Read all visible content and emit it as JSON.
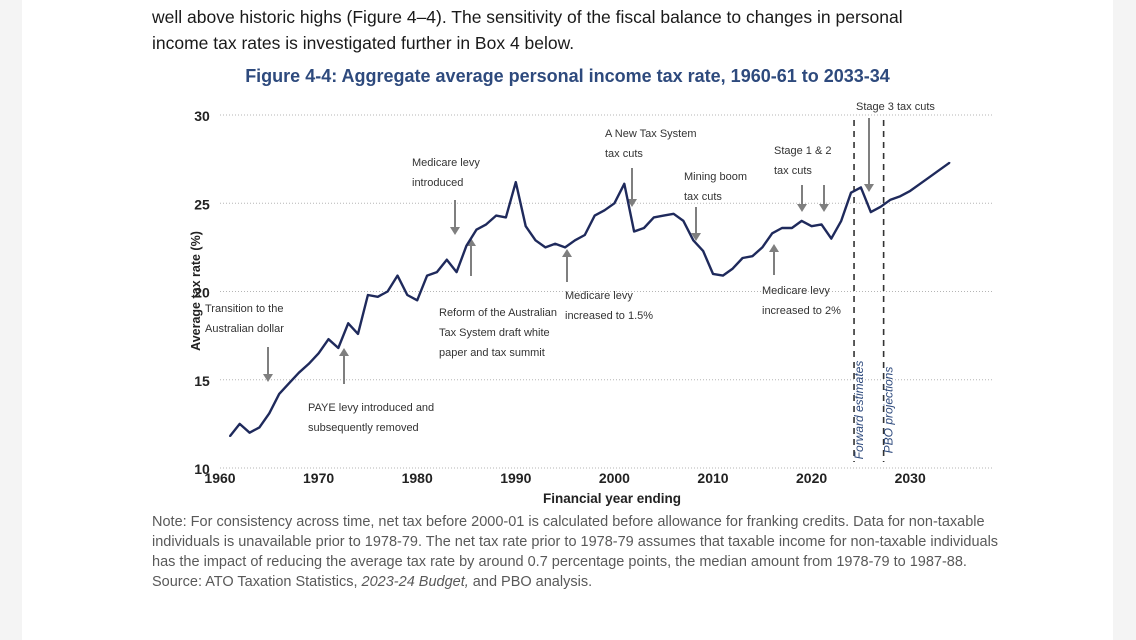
{
  "intro": {
    "line1": "well above historic highs (Figure 4–4). The sensitivity of the fiscal balance to changes in personal",
    "line2": "income tax rates is investigated further in Box 4 below."
  },
  "chart_data": {
    "type": "line",
    "title": "Figure 4-4: Aggregate average personal income tax rate, 1960-61 to 2033-34",
    "xlabel": "Financial year ending",
    "ylabel": "Average tax rate (%)",
    "xlim": [
      1960,
      2036
    ],
    "ylim": [
      10,
      30
    ],
    "x_ticks": [
      1960,
      1970,
      1980,
      1990,
      2000,
      2010,
      2020,
      2030
    ],
    "y_ticks": [
      10,
      15,
      20,
      25,
      30
    ],
    "grid": "horizontal dotted",
    "series": [
      {
        "name": "Average tax rate",
        "color": "#1f2a5c",
        "points": [
          [
            1961,
            11.8
          ],
          [
            1962,
            12.5
          ],
          [
            1963,
            12.0
          ],
          [
            1964,
            12.3
          ],
          [
            1965,
            13.1
          ],
          [
            1966,
            14.2
          ],
          [
            1967,
            14.8
          ],
          [
            1968,
            15.4
          ],
          [
            1969,
            15.9
          ],
          [
            1970,
            16.5
          ],
          [
            1971,
            17.3
          ],
          [
            1972,
            16.8
          ],
          [
            1973,
            18.2
          ],
          [
            1974,
            17.6
          ],
          [
            1975,
            19.8
          ],
          [
            1976,
            19.7
          ],
          [
            1977,
            20.0
          ],
          [
            1978,
            20.9
          ],
          [
            1979,
            19.8
          ],
          [
            1980,
            19.5
          ],
          [
            1981,
            20.9
          ],
          [
            1982,
            21.1
          ],
          [
            1983,
            21.8
          ],
          [
            1984,
            21.1
          ],
          [
            1985,
            22.6
          ],
          [
            1986,
            23.5
          ],
          [
            1987,
            23.8
          ],
          [
            1988,
            24.3
          ],
          [
            1989,
            24.2
          ],
          [
            1990,
            26.2
          ],
          [
            1991,
            23.7
          ],
          [
            1992,
            22.9
          ],
          [
            1993,
            22.5
          ],
          [
            1994,
            22.7
          ],
          [
            1995,
            22.5
          ],
          [
            1996,
            22.9
          ],
          [
            1997,
            23.2
          ],
          [
            1998,
            24.3
          ],
          [
            1999,
            24.6
          ],
          [
            2000,
            25.0
          ],
          [
            2001,
            26.1
          ],
          [
            2002,
            23.4
          ],
          [
            2003,
            23.6
          ],
          [
            2004,
            24.2
          ],
          [
            2005,
            24.3
          ],
          [
            2006,
            24.4
          ],
          [
            2007,
            24.0
          ],
          [
            2008,
            22.9
          ],
          [
            2009,
            22.3
          ],
          [
            2010,
            21.0
          ],
          [
            2011,
            20.9
          ],
          [
            2012,
            21.3
          ],
          [
            2013,
            21.9
          ],
          [
            2014,
            22.0
          ],
          [
            2015,
            22.5
          ],
          [
            2016,
            23.3
          ],
          [
            2017,
            23.6
          ],
          [
            2018,
            23.6
          ],
          [
            2019,
            24.0
          ],
          [
            2020,
            23.7
          ],
          [
            2021,
            23.8
          ],
          [
            2022,
            23.0
          ],
          [
            2023,
            24.0
          ],
          [
            2024,
            25.6
          ],
          [
            2025,
            25.9
          ],
          [
            2026,
            24.5
          ],
          [
            2027,
            24.8
          ],
          [
            2028,
            25.2
          ],
          [
            2029,
            25.4
          ],
          [
            2030,
            25.7
          ],
          [
            2031,
            26.1
          ],
          [
            2032,
            26.5
          ],
          [
            2033,
            26.9
          ],
          [
            2034,
            27.3
          ]
        ]
      }
    ],
    "annotations": [
      {
        "lines": [
          "Transition to the",
          "Australian dollar"
        ],
        "year": 1966
      },
      {
        "lines": [
          "PAYE levy introduced and",
          "subsequently removed"
        ],
        "year": 1973
      },
      {
        "lines": [
          "Medicare levy",
          "introduced"
        ],
        "year": 1984
      },
      {
        "lines": [
          "Reform of the Australian",
          "Tax System draft white",
          "paper and tax summit"
        ],
        "year": 1985
      },
      {
        "lines": [
          "Medicare levy",
          "increased to 1.5%"
        ],
        "year": 1995
      },
      {
        "lines": [
          "A New Tax System",
          "tax cuts"
        ],
        "year": 2002
      },
      {
        "lines": [
          "Mining boom",
          "tax cuts"
        ],
        "year": 2009
      },
      {
        "lines": [
          "Medicare levy",
          "increased to 2%"
        ],
        "year": 2016
      },
      {
        "lines": [
          "Stage 1 & 2",
          "tax cuts"
        ],
        "year": 2020
      },
      {
        "lines": [
          "Stage 3 tax cuts"
        ],
        "year": 2025
      }
    ],
    "period_labels": [
      "Forward estimates",
      "PBO projections"
    ],
    "period_boundaries": [
      2024,
      2027
    ]
  },
  "note": {
    "text": "Note: For consistency across time, net tax before 2000-01 is calculated before allowance for franking credits. Data for non-taxable individuals is unavailable prior to 1978-79. The net tax rate prior to 1978-79 assumes that taxable income for non-taxable individuals has the impact of reducing the average tax rate by around 0.7 percentage points, the median amount from 1978-79 to 1987-88.",
    "source_prefix": "Source: ATO Taxation Statistics, ",
    "source_budget": "2023-24 Budget,",
    "source_suffix": " and PBO analysis."
  }
}
